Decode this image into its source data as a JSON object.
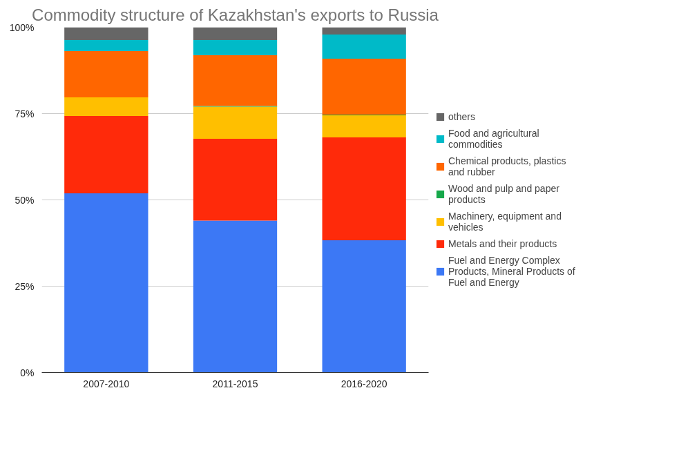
{
  "chart_data": {
    "type": "bar",
    "title": "Commodity structure of Kazakhstan's exports to Russia",
    "categories": [
      "2007-2010",
      "2011-2015",
      "2016-2020"
    ],
    "stacked": true,
    "series": [
      {
        "name": "Fuel and Energy Complex Products, Mineral Products of Fuel and Energy",
        "color": "#3c78f5",
        "values": [
          51.9,
          44.0,
          38.3
        ]
      },
      {
        "name": "Metals and their products",
        "color": "#ff2a0a",
        "values": [
          22.4,
          23.7,
          29.8
        ]
      },
      {
        "name": "Machinery, equipment and vehicles",
        "color": "#ffbf00",
        "values": [
          5.4,
          9.3,
          6.4
        ]
      },
      {
        "name": "Wood and pulp and paper products",
        "color": "#16a84a",
        "values": [
          0,
          0.2,
          0.2
        ]
      },
      {
        "name": "Chemical products, plastics and rubber",
        "color": "#ff6600",
        "values": [
          13.4,
          14.7,
          16.2
        ]
      },
      {
        "name": "Food and agricultural commodities",
        "color": "#00bac8",
        "values": [
          3.2,
          4.4,
          7.0
        ]
      },
      {
        "name": "others",
        "color": "#666666",
        "values": [
          3.7,
          3.7,
          2.1
        ]
      }
    ],
    "ylim": [
      0,
      100
    ],
    "yticks": [
      {
        "value": 0,
        "label": "0%"
      },
      {
        "value": 25,
        "label": "25%"
      },
      {
        "value": 50,
        "label": "50%"
      },
      {
        "value": 75,
        "label": "75%"
      },
      {
        "value": 100,
        "label": "100%"
      }
    ],
    "grid": "y",
    "legend": "right"
  }
}
